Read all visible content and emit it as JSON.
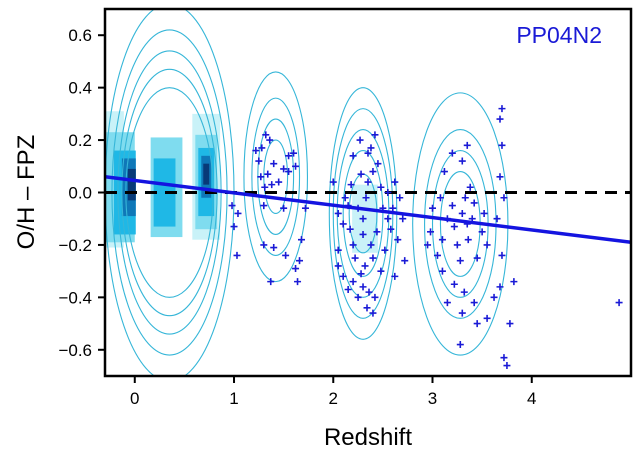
{
  "chart_data": {
    "type": "scatter",
    "title": "",
    "xlabel": "Redshift",
    "ylabel": "O/H – FPZ",
    "xlim": [
      -0.3,
      5.0
    ],
    "ylim": [
      -0.7,
      0.7
    ],
    "xticks": [
      0,
      1,
      2,
      3,
      4
    ],
    "xtick_labels": [
      "0",
      "1",
      "2",
      "3",
      "4"
    ],
    "yticks": [
      -0.6,
      -0.4,
      -0.2,
      0.0,
      0.2,
      0.4,
      0.6
    ],
    "ytick_labels": [
      "−0.6",
      "−0.4",
      "−0.2",
      "0.0",
      "0.2",
      "0.4",
      "0.6"
    ],
    "annotation": "PP04N2",
    "colors": {
      "points": "#1a1ad6",
      "fit_line": "#1414e0",
      "contours": "#36b6d8",
      "annotation": "#1a1ad6",
      "density": [
        "#c9f2f8",
        "#7fdcef",
        "#1fb8e6",
        "#0f78b8",
        "#083a78"
      ]
    },
    "zero_line": {
      "y": 0.0,
      "style": "dashed",
      "color": "#000000"
    },
    "fit_line": {
      "x": [
        -0.3,
        5.0
      ],
      "y": [
        0.06,
        -0.19
      ]
    },
    "density_blocks": [
      {
        "x": -0.22,
        "y": 0.05,
        "w": 0.22,
        "h": 0.52,
        "level": 0
      },
      {
        "x": -0.15,
        "y": 0.02,
        "w": 0.3,
        "h": 0.42,
        "level": 1
      },
      {
        "x": -0.1,
        "y": 0.0,
        "w": 0.22,
        "h": 0.32,
        "level": 2
      },
      {
        "x": -0.06,
        "y": 0.02,
        "w": 0.14,
        "h": 0.22,
        "level": 3
      },
      {
        "x": -0.03,
        "y": 0.03,
        "w": 0.08,
        "h": 0.12,
        "level": 4
      },
      {
        "x": 0.32,
        "y": 0.02,
        "w": 0.32,
        "h": 0.38,
        "level": 1
      },
      {
        "x": 0.3,
        "y": 0.0,
        "w": 0.22,
        "h": 0.26,
        "level": 2
      },
      {
        "x": 0.72,
        "y": 0.06,
        "w": 0.28,
        "h": 0.48,
        "level": 0
      },
      {
        "x": 0.72,
        "y": 0.04,
        "w": 0.22,
        "h": 0.36,
        "level": 1
      },
      {
        "x": 0.72,
        "y": 0.04,
        "w": 0.16,
        "h": 0.26,
        "level": 2
      },
      {
        "x": 0.72,
        "y": 0.06,
        "w": 0.1,
        "h": 0.16,
        "level": 3
      },
      {
        "x": 0.72,
        "y": 0.07,
        "w": 0.06,
        "h": 0.08,
        "level": 4
      },
      {
        "x": 2.32,
        "y": -0.1,
        "w": 0.26,
        "h": 0.26,
        "level": 0
      }
    ],
    "contour_groups": [
      {
        "cx": 0.35,
        "cy": 0.0,
        "rings": [
          [
            0.65,
            0.72
          ],
          [
            0.58,
            0.62
          ],
          [
            0.52,
            0.54
          ],
          [
            0.48,
            0.47
          ],
          [
            0.44,
            0.4
          ]
        ]
      },
      {
        "cx": 1.42,
        "cy": 0.06,
        "rings": [
          [
            0.32,
            0.4
          ],
          [
            0.24,
            0.3
          ],
          [
            0.18,
            0.22
          ],
          [
            0.12,
            0.14
          ]
        ]
      },
      {
        "cx": 2.3,
        "cy": -0.08,
        "rings": [
          [
            0.34,
            0.48
          ],
          [
            0.3,
            0.4
          ],
          [
            0.26,
            0.32
          ],
          [
            0.2,
            0.24
          ],
          [
            0.14,
            0.15
          ]
        ]
      },
      {
        "cx": 3.28,
        "cy": -0.12,
        "rings": [
          [
            0.48,
            0.5
          ],
          [
            0.36,
            0.36
          ],
          [
            0.28,
            0.28
          ],
          [
            0.2,
            0.2
          ]
        ]
      }
    ],
    "points": [
      [
        0.98,
        -0.05
      ],
      [
        1.04,
        -0.08
      ],
      [
        1.0,
        -0.13
      ],
      [
        1.03,
        -0.24
      ],
      [
        1.22,
        0.16
      ],
      [
        1.28,
        0.17
      ],
      [
        1.32,
        0.22
      ],
      [
        1.36,
        0.2
      ],
      [
        1.25,
        0.12
      ],
      [
        1.27,
        0.06
      ],
      [
        1.34,
        0.07
      ],
      [
        1.4,
        0.11
      ],
      [
        1.38,
        0.03
      ],
      [
        1.31,
        0.02
      ],
      [
        1.45,
        0.04
      ],
      [
        1.5,
        0.09
      ],
      [
        1.55,
        0.14
      ],
      [
        1.6,
        0.15
      ],
      [
        1.55,
        0.08
      ],
      [
        1.62,
        0.1
      ],
      [
        1.3,
        -0.05
      ],
      [
        1.5,
        -0.06
      ],
      [
        1.3,
        -0.2
      ],
      [
        1.4,
        -0.21
      ],
      [
        1.52,
        -0.24
      ],
      [
        1.68,
        -0.18
      ],
      [
        1.66,
        -0.26
      ],
      [
        1.62,
        -0.29
      ],
      [
        1.37,
        -0.34
      ],
      [
        1.72,
        -0.06
      ],
      [
        1.64,
        -0.34
      ],
      [
        2.0,
        0.04
      ],
      [
        2.05,
        -0.08
      ],
      [
        2.1,
        -0.12
      ],
      [
        2.15,
        -0.05
      ],
      [
        2.05,
        -0.22
      ],
      [
        2.2,
        -0.2
      ],
      [
        2.17,
        -0.14
      ],
      [
        2.25,
        -0.06
      ],
      [
        2.3,
        -0.1
      ],
      [
        2.33,
        -0.02
      ],
      [
        2.35,
        0.04
      ],
      [
        2.28,
        0.07
      ],
      [
        2.4,
        0.08
      ],
      [
        2.45,
        0.11
      ],
      [
        2.38,
        0.17
      ],
      [
        2.42,
        0.22
      ],
      [
        2.35,
        0.15
      ],
      [
        2.48,
        0.02
      ],
      [
        2.5,
        -0.06
      ],
      [
        2.55,
        -0.1
      ],
      [
        2.44,
        -0.15
      ],
      [
        2.38,
        -0.2
      ],
      [
        2.4,
        -0.25
      ],
      [
        2.32,
        -0.28
      ],
      [
        2.28,
        -0.31
      ],
      [
        2.2,
        -0.34
      ],
      [
        2.3,
        -0.36
      ],
      [
        2.36,
        -0.38
      ],
      [
        2.42,
        -0.4
      ],
      [
        2.25,
        -0.4
      ],
      [
        2.15,
        -0.37
      ],
      [
        2.1,
        -0.32
      ],
      [
        2.05,
        -0.28
      ],
      [
        2.48,
        -0.3
      ],
      [
        2.52,
        -0.22
      ],
      [
        2.58,
        -0.14
      ],
      [
        2.6,
        -0.06
      ],
      [
        2.55,
        0.0
      ],
      [
        2.62,
        0.04
      ],
      [
        2.67,
        -0.02
      ],
      [
        2.7,
        -0.1
      ],
      [
        2.65,
        -0.18
      ],
      [
        2.72,
        -0.26
      ],
      [
        2.18,
        0.03
      ],
      [
        2.12,
        -0.02
      ],
      [
        2.22,
        -0.25
      ],
      [
        2.3,
        -0.16
      ],
      [
        2.34,
        -0.44
      ],
      [
        2.4,
        -0.46
      ],
      [
        2.62,
        -0.32
      ],
      [
        2.27,
        0.2
      ],
      [
        2.2,
        0.14
      ],
      [
        3.0,
        -0.06
      ],
      [
        2.98,
        -0.15
      ],
      [
        3.05,
        -0.24
      ],
      [
        3.1,
        -0.18
      ],
      [
        3.15,
        -0.1
      ],
      [
        3.2,
        -0.05
      ],
      [
        3.22,
        -0.13
      ],
      [
        3.25,
        -0.2
      ],
      [
        3.28,
        -0.26
      ],
      [
        3.3,
        -0.08
      ],
      [
        3.33,
        -0.02
      ],
      [
        3.35,
        -0.12
      ],
      [
        3.36,
        -0.18
      ],
      [
        3.4,
        -0.1
      ],
      [
        3.42,
        -0.04
      ],
      [
        3.38,
        0.02
      ],
      [
        3.3,
        0.12
      ],
      [
        3.35,
        0.18
      ],
      [
        3.12,
        0.08
      ],
      [
        3.2,
        0.15
      ],
      [
        3.45,
        -0.25
      ],
      [
        3.5,
        -0.15
      ],
      [
        3.52,
        -0.08
      ],
      [
        3.55,
        -0.2
      ],
      [
        3.1,
        -0.3
      ],
      [
        3.22,
        -0.35
      ],
      [
        3.32,
        -0.38
      ],
      [
        3.42,
        -0.42
      ],
      [
        3.3,
        -0.46
      ],
      [
        3.45,
        -0.5
      ],
      [
        3.55,
        -0.48
      ],
      [
        3.62,
        -0.4
      ],
      [
        3.68,
        -0.36
      ],
      [
        3.7,
        -0.24
      ],
      [
        3.65,
        -0.1
      ],
      [
        3.72,
        -0.02
      ],
      [
        3.68,
        0.06
      ],
      [
        3.7,
        0.18
      ],
      [
        3.78,
        -0.5
      ],
      [
        3.72,
        -0.63
      ],
      [
        3.75,
        -0.66
      ],
      [
        3.82,
        -0.34
      ],
      [
        3.68,
        0.28
      ],
      [
        3.7,
        0.32
      ],
      [
        3.15,
        -0.42
      ],
      [
        3.28,
        -0.58
      ],
      [
        2.95,
        -0.2
      ],
      [
        3.08,
        -0.02
      ],
      [
        4.88,
        -0.42
      ]
    ]
  }
}
